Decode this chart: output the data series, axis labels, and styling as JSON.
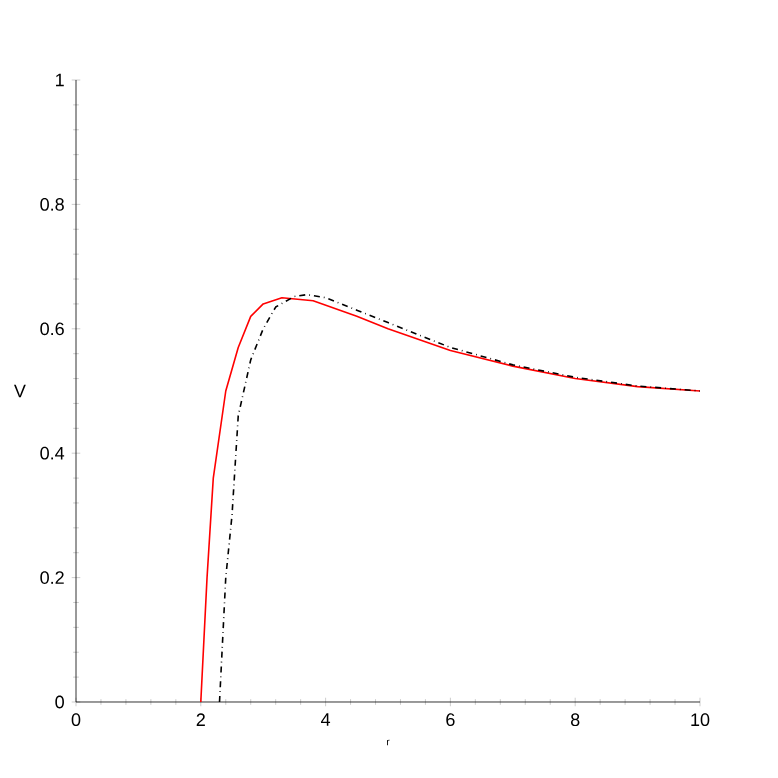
{
  "chart_data": {
    "type": "line",
    "xlabel": "r",
    "ylabel": "V",
    "xlim": [
      0,
      10
    ],
    "ylim": [
      0,
      1
    ],
    "xticks": [
      0,
      2,
      4,
      6,
      8,
      10
    ],
    "yticks": [
      0,
      0.2,
      0.4,
      0.6,
      0.8,
      1
    ],
    "grid": false,
    "marker": "none",
    "series": [
      {
        "color": "#ff0000",
        "line_style": "solid",
        "x": [
          2,
          2.05,
          2.1,
          2.2,
          2.4,
          2.6,
          2.8,
          3.0,
          3.3,
          3.8,
          4.5,
          5,
          6,
          7,
          8,
          9,
          10
        ],
        "values": [
          0,
          0.1,
          0.2,
          0.36,
          0.5,
          0.57,
          0.62,
          0.64,
          0.65,
          0.645,
          0.62,
          0.6,
          0.565,
          0.54,
          0.52,
          0.507,
          0.5
        ]
      },
      {
        "color": "#000000",
        "line_style": "dashdot",
        "x": [
          2.3,
          2.4,
          2.5,
          2.6,
          2.8,
          3.0,
          3.2,
          3.5,
          3.7,
          4,
          4.5,
          5,
          6,
          7,
          8,
          9,
          10
        ],
        "values": [
          0,
          0.2,
          0.3,
          0.46,
          0.55,
          0.6,
          0.635,
          0.652,
          0.655,
          0.65,
          0.63,
          0.61,
          0.57,
          0.542,
          0.522,
          0.508,
          0.5
        ]
      }
    ]
  }
}
